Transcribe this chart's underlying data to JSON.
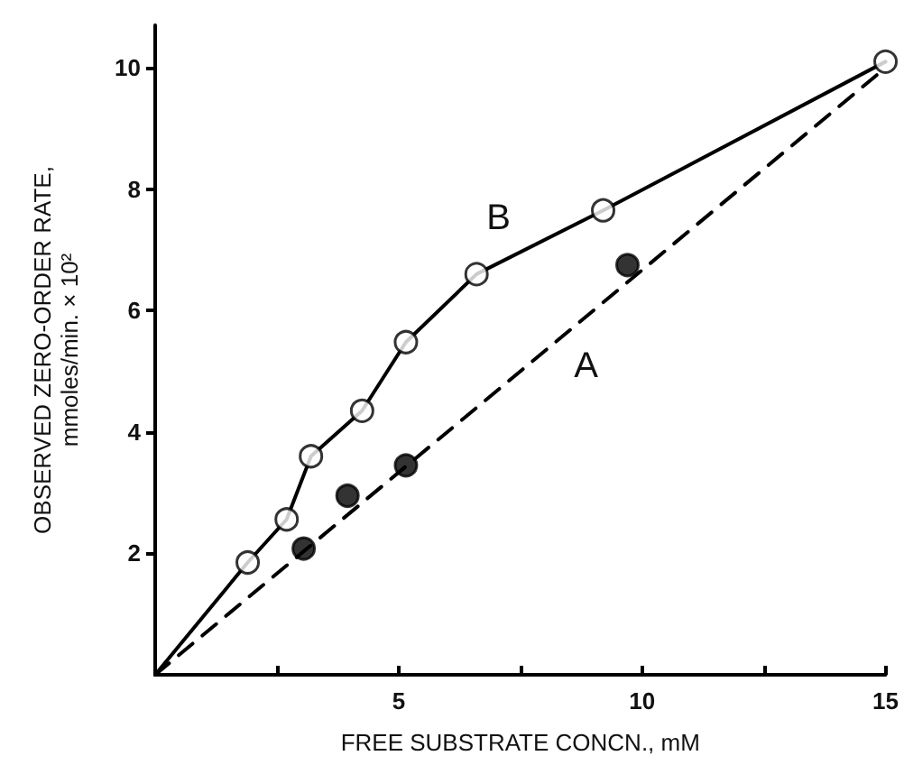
{
  "chart_data": {
    "type": "scatter",
    "xlabel": "FREE SUBSTRATE CONCN., mM",
    "ylabel": "OBSERVED ZERO-ORDER RATE,\nmmoles/min. × 10²",
    "xlim": [
      0,
      15
    ],
    "ylim": [
      0,
      10.7
    ],
    "xticks": [
      {
        "value": 2.5,
        "label": null
      },
      5,
      {
        "value": 7.5,
        "label": null
      },
      10,
      {
        "value": 12.5,
        "label": null
      },
      15
    ],
    "yticks": [
      2,
      4,
      6,
      8,
      10
    ],
    "grid": false,
    "legend": false,
    "marker": "circle",
    "series": [
      {
        "type": "line",
        "name": "B",
        "color": "#000000",
        "line_style": "solid",
        "marker": "none",
        "x": [
          0,
          1.9,
          2.7,
          3.2,
          4.25,
          5.15,
          6.6,
          9.2,
          15
        ],
        "values": [
          0,
          1.85,
          2.56,
          3.6,
          4.35,
          5.48,
          6.6,
          7.65,
          10.1
        ]
      },
      {
        "type": "line",
        "name": "A",
        "color": "#000000",
        "line_style": "dashed",
        "marker": "none",
        "x": [
          0,
          15
        ],
        "values": [
          0,
          10
        ]
      },
      {
        "color": "#ffffff",
        "x": [
          1.9,
          2.7,
          3.2,
          4.25,
          5.15,
          6.6,
          9.2,
          15
        ],
        "values": [
          1.85,
          2.56,
          3.6,
          4.35,
          5.48,
          6.6,
          7.65,
          10.1
        ]
      },
      {
        "color": "#000000",
        "x": [
          3.05,
          3.95,
          5.15,
          9.7
        ],
        "values": [
          2.08,
          2.95,
          3.45,
          6.75
        ]
      }
    ]
  }
}
